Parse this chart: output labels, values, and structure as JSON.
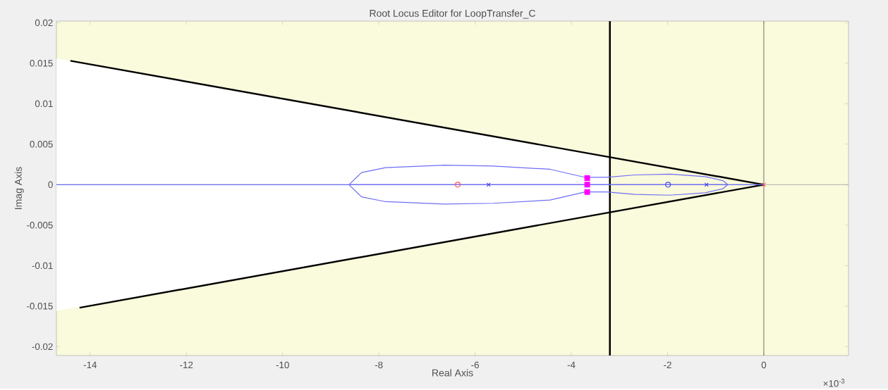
{
  "chart_data": {
    "type": "line",
    "title": "Root Locus Editor for LoopTransfer_C",
    "xlabel": "Real Axis",
    "ylabel": "Imag Axis",
    "xlim": [
      -14.7,
      1.76
    ],
    "ylim": [
      -0.0211,
      0.0202
    ],
    "xticks": [
      -14,
      -12,
      -10,
      -8,
      -6,
      -4,
      -2,
      0
    ],
    "yticks": [
      -0.02,
      -0.015,
      -0.01,
      -0.005,
      0,
      0.005,
      0.01,
      0.015,
      0.02
    ],
    "grid": false,
    "annotations": [
      "×10$^{-3}$"
    ],
    "ref_lines": [
      {
        "axis": "y",
        "value": 0,
        "color": "#a0a0a0"
      },
      {
        "axis": "x",
        "value": 0,
        "color": "#505050"
      },
      {
        "axis": "x",
        "value": -3.2,
        "color": "#000000"
      }
    ],
    "series": [
      {
        "type": "area",
        "color": "#ffffff",
        "x": [
          -14.7,
          -3.2
        ],
        "values": [
          0.0156,
          0.0035
        ]
      },
      {
        "type": "area",
        "color": "#ffffff",
        "x": [
          -14.7,
          -3.2
        ],
        "values": [
          -0.0156,
          -0.0035
        ]
      },
      {
        "color": "#000000",
        "x": [
          -14.41,
          0
        ],
        "values": [
          0.0153,
          0
        ]
      },
      {
        "color": "#000000",
        "x": [
          -14.22,
          0
        ],
        "values": [
          -0.0152,
          0
        ]
      },
      {
        "color": "#6e6ef5",
        "x": [
          -14.7,
          -6.36,
          null,
          -5.72,
          -1.99,
          null,
          -1.19,
          0
        ],
        "values": [
          0,
          0,
          null,
          0,
          0,
          null,
          0,
          0
        ]
      },
      {
        "color": "#6e6ef5",
        "x": [
          -8.62,
          -8.36,
          -7.86,
          -6.64,
          -5.62,
          -4.44,
          -3.71,
          -3.27,
          -2.68,
          -1.95,
          -1.22,
          -0.85,
          -0.75,
          null,
          -8.62,
          -8.36,
          -7.86,
          -6.64,
          -5.62,
          -4.44,
          -3.71,
          -3.27,
          -2.68,
          -1.95,
          -1.22,
          -0.85,
          -0.75
        ],
        "values": [
          0,
          0.0015,
          0.0021,
          0.0024,
          0.0023,
          0.0019,
          0.0009,
          0.0009,
          0.0012,
          0.0013,
          0.001,
          0.0005,
          0,
          null,
          0,
          -0.0015,
          -0.0021,
          -0.0024,
          -0.0023,
          -0.0019,
          -0.0009,
          -0.0009,
          -0.0012,
          -0.0013,
          -0.001,
          -0.0005,
          0
        ]
      },
      {
        "type": "scatter",
        "color": "#3c3cf0",
        "marker": "cross",
        "x": [
          -5.72,
          -1.19
        ],
        "values": [
          0,
          0
        ]
      },
      {
        "type": "scatter",
        "color": "#ff5050",
        "marker": "cross",
        "x": [
          0
        ],
        "values": [
          0
        ]
      },
      {
        "type": "scatter",
        "color": "#ff5050",
        "marker": "circle",
        "x": [
          -6.36
        ],
        "values": [
          0
        ]
      },
      {
        "type": "scatter",
        "color": "#3c3cf0",
        "marker": "circle",
        "x": [
          -1.99
        ],
        "values": [
          0
        ]
      },
      {
        "type": "scatter",
        "color": "#ff00ff",
        "marker": "square",
        "x": [
          -3.67,
          -3.67,
          -3.67
        ],
        "values": [
          0.0008,
          0,
          -0.0009
        ]
      }
    ]
  }
}
